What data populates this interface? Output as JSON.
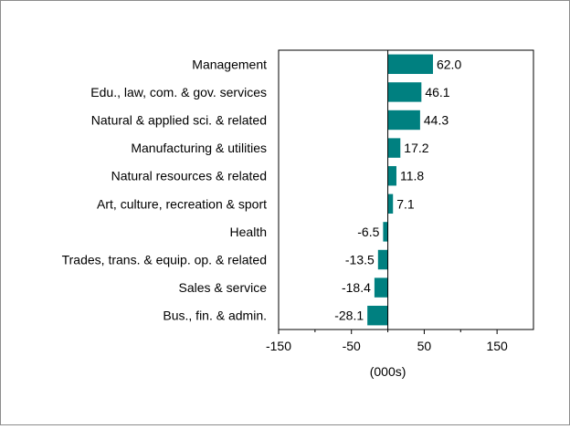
{
  "chart_data": {
    "type": "bar",
    "orientation": "horizontal",
    "categories": [
      "Management",
      "Edu., law, com. & gov. services",
      "Natural & applied sci. & related",
      "Manufacturing & utilities",
      "Natural resources & related",
      "Art, culture, recreation & sport",
      "Health",
      "Trades, trans. & equip. op. & related",
      "Sales & service",
      "Bus., fin. & admin."
    ],
    "values": [
      62.0,
      46.1,
      44.3,
      17.2,
      11.8,
      7.1,
      -6.5,
      -13.5,
      -18.4,
      -28.1
    ],
    "data_labels": [
      "62.0",
      "46.1",
      "44.3",
      "17.2",
      "11.8",
      "7.1",
      "-6.5",
      "-13.5",
      "-18.4",
      "-28.1"
    ],
    "xlabel": "(000s)",
    "xlim": [
      -150,
      200
    ],
    "x_ticks": [
      -150,
      -50,
      50,
      150
    ],
    "x_tick_labels": [
      "-150",
      "-50",
      "50",
      "150"
    ],
    "bar_color": "#008080",
    "grid": false,
    "legend": "none"
  }
}
